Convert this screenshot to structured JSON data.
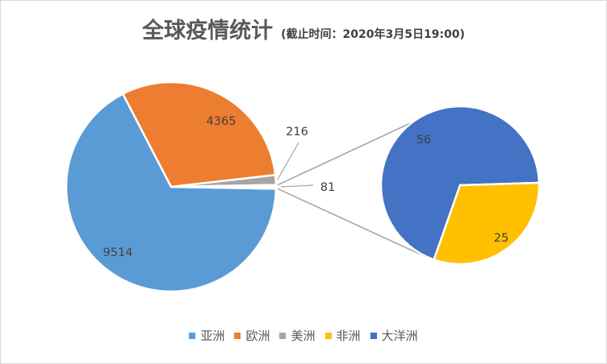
{
  "title": "全球疫情统计",
  "subtitle": "(截止时间：2020年3月5日19:00)",
  "chart_data": {
    "type": "pie",
    "variant": "pie-of-pie",
    "series": [
      {
        "name": "亚洲",
        "value": 9514,
        "color": "#5b9bd5",
        "label": "9514"
      },
      {
        "name": "欧洲",
        "value": 4365,
        "color": "#ed7d31",
        "label": "4365"
      },
      {
        "name": "美洲",
        "value": 216,
        "color": "#a5a5a5",
        "label": "216"
      },
      {
        "name": "非洲",
        "value": 25,
        "color": "#ffc000",
        "label": "25"
      },
      {
        "name": "大洋洲",
        "value": 56,
        "color": "#4472c4",
        "label": "56"
      }
    ],
    "other_slice_label": "81",
    "secondary_pie_members": [
      "大洋洲",
      "非洲"
    ],
    "legend": [
      "亚洲",
      "欧洲",
      "美洲",
      "非洲",
      "大洋洲"
    ],
    "legend_position": "bottom"
  }
}
